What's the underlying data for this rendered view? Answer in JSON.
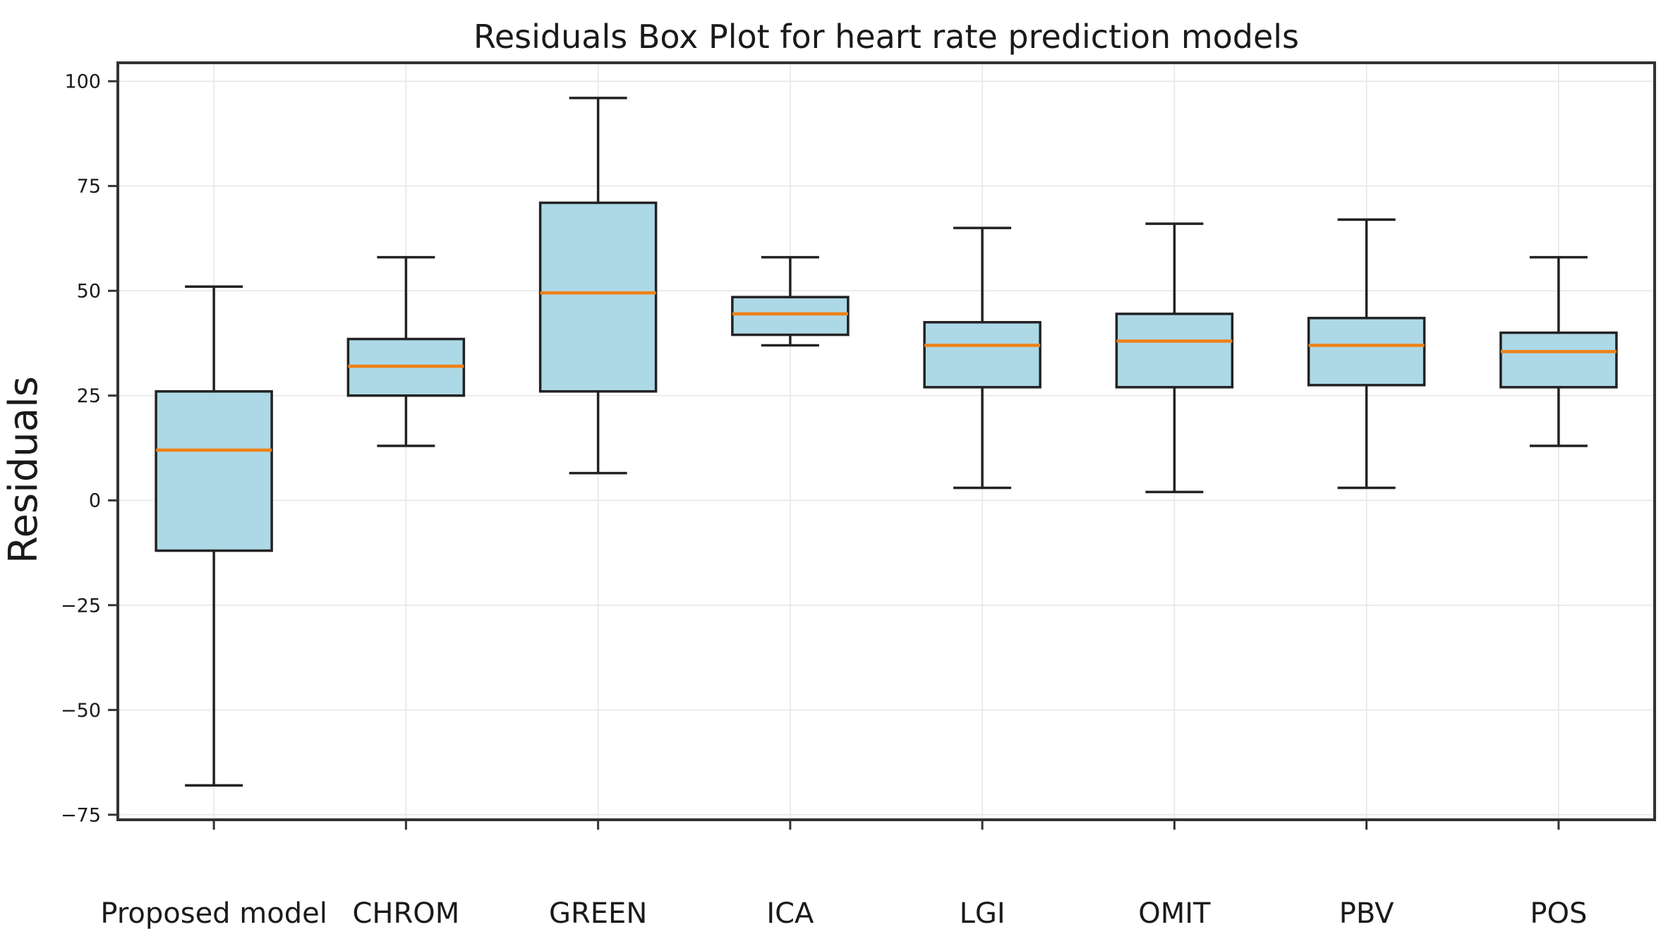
{
  "chart_data": {
    "type": "box",
    "title": "Residuals Box Plot for heart rate prediction models",
    "ylabel": "Residuals",
    "xlabel": "",
    "categories": [
      "Proposed model",
      "CHROM",
      "GREEN",
      "ICA",
      "LGI",
      "OMIT",
      "PBV",
      "POS"
    ],
    "series": [
      {
        "name": "Proposed model",
        "whislo": -68,
        "q1": -12,
        "med": 12,
        "q3": 26,
        "whishi": 51
      },
      {
        "name": "CHROM",
        "whislo": 13,
        "q1": 25,
        "med": 32,
        "q3": 38.5,
        "whishi": 58
      },
      {
        "name": "GREEN",
        "whislo": 6.5,
        "q1": 26,
        "med": 49.5,
        "q3": 71,
        "whishi": 96
      },
      {
        "name": "ICA",
        "whislo": 37,
        "q1": 39.5,
        "med": 44.5,
        "q3": 48.5,
        "whishi": 58
      },
      {
        "name": "LGI",
        "whislo": 3,
        "q1": 27,
        "med": 37,
        "q3": 42.5,
        "whishi": 65
      },
      {
        "name": "OMIT",
        "whislo": 2,
        "q1": 27,
        "med": 38,
        "q3": 44.5,
        "whishi": 66
      },
      {
        "name": "PBV",
        "whislo": 3,
        "q1": 27.5,
        "med": 37,
        "q3": 43.5,
        "whishi": 67
      },
      {
        "name": "POS",
        "whislo": 13,
        "q1": 27,
        "med": 35.5,
        "q3": 40,
        "whishi": 58
      }
    ],
    "yticks": [
      100,
      75,
      50,
      25,
      0,
      -25,
      -50,
      -75
    ],
    "ylim": [
      -76.2,
      104.4
    ],
    "grid": true,
    "legend": null,
    "colors": {
      "box_fill": "#add8e6",
      "box_edge": "#222222",
      "whisker": "#222222",
      "median": "#ee8016",
      "grid": "#e7e7e7",
      "spine": "#333333",
      "text": "#1a1a1a",
      "background": "#ffffff"
    }
  }
}
